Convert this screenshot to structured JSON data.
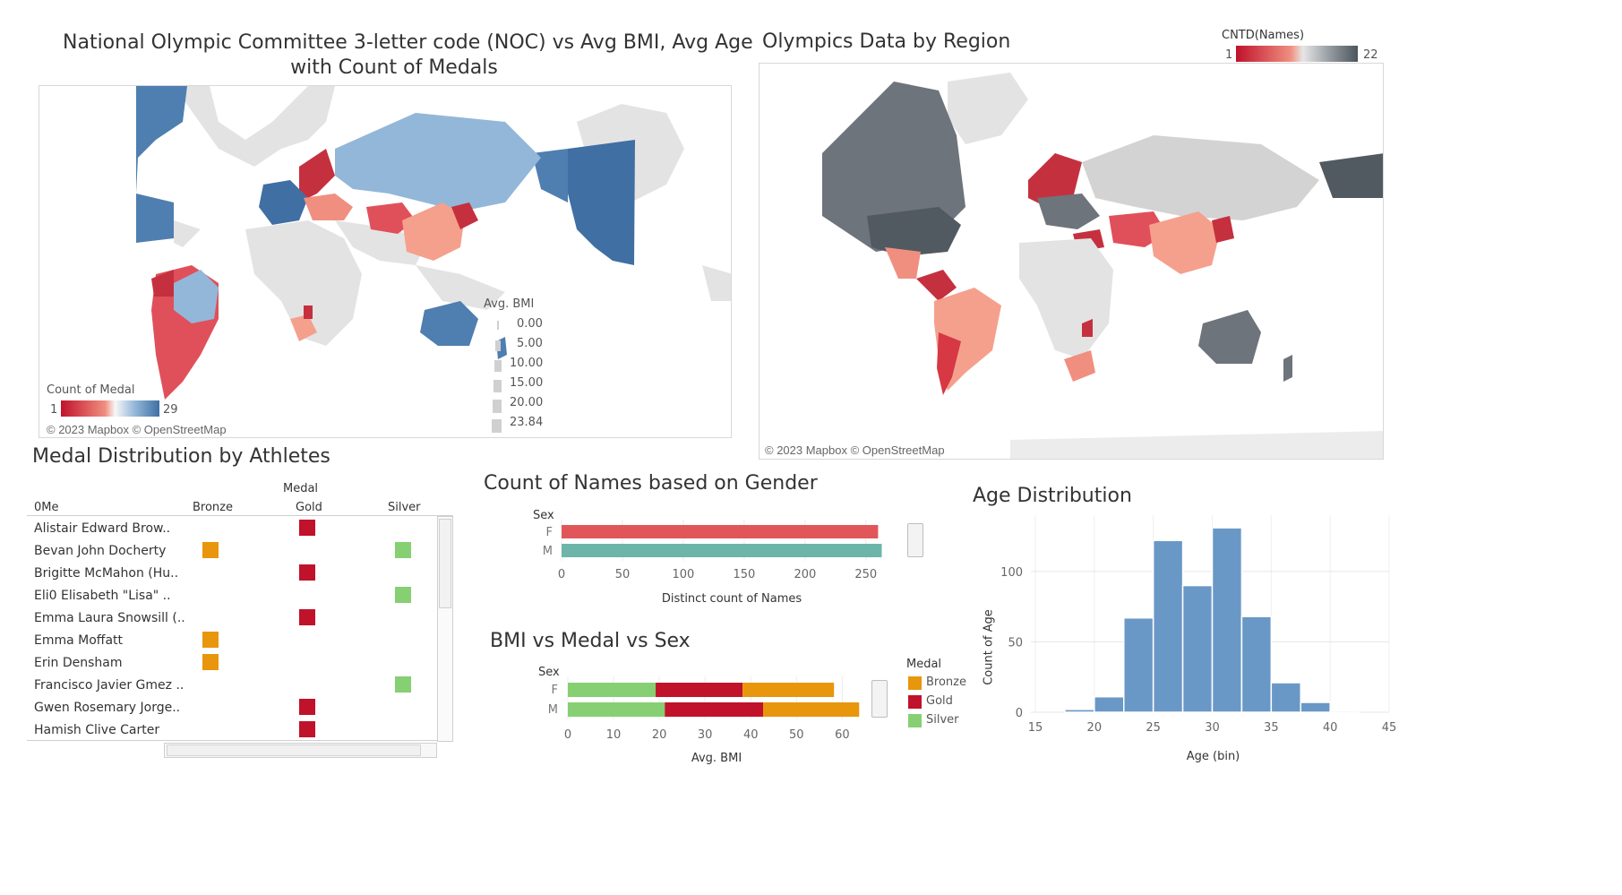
{
  "map_noc": {
    "title_line1": "National Olympic Committee 3-letter code (NOC) vs Avg BMI, Avg Age",
    "title_line2": "with Count of Medals",
    "color_legend": {
      "title": "Count of Medal",
      "min": "1",
      "max": "29"
    },
    "size_legend": {
      "title": "Avg. BMI",
      "items": [
        "0.00",
        "5.00",
        "10.00",
        "15.00",
        "20.00",
        "23.84"
      ]
    },
    "credit": "© 2023 Mapbox © OpenStreetMap"
  },
  "map_region": {
    "title": "Olympics Data by Region",
    "legend": {
      "title": "CNTD(Names)",
      "min": "1",
      "max": "22"
    },
    "credit": "© 2023 Mapbox © OpenStreetMap"
  },
  "medal_table": {
    "title": "Medal Distribution by Athletes",
    "header_group": "Medal",
    "name_header": "0Me",
    "columns": [
      "Bronze",
      "Gold",
      "Silver"
    ],
    "rows": [
      {
        "name": "Alistair Edward Brow..",
        "medals": [
          "Gold"
        ]
      },
      {
        "name": "Bevan John Docherty",
        "medals": [
          "Bronze",
          "Silver"
        ]
      },
      {
        "name": "Brigitte McMahon (Hu..",
        "medals": [
          "Gold"
        ]
      },
      {
        "name": "Eli0 Elisabeth \"Lisa\" ..",
        "medals": [
          "Silver"
        ]
      },
      {
        "name": "Emma Laura Snowsill (..",
        "medals": [
          "Gold"
        ]
      },
      {
        "name": "Emma Moffatt",
        "medals": [
          "Bronze"
        ]
      },
      {
        "name": "Erin Densham",
        "medals": [
          "Bronze"
        ]
      },
      {
        "name": "Francisco Javier Gmez ..",
        "medals": [
          "Silver"
        ]
      },
      {
        "name": "Gwen Rosemary Jorge..",
        "medals": [
          "Gold"
        ]
      },
      {
        "name": "Hamish Clive Carter",
        "medals": [
          "Gold"
        ]
      }
    ],
    "colors": {
      "Bronze": "#e8960c",
      "Gold": "#c0122b",
      "Silver": "#86cf72"
    }
  },
  "gender_chart": {
    "title": "Count of Names based on Gender",
    "axis_title": "Sex",
    "xlabel": "Distinct count of Names",
    "chart_data": {
      "type": "bar",
      "categories": [
        "F",
        "M"
      ],
      "values": [
        260,
        263
      ],
      "colors": [
        "#e15759",
        "#6cb5a8"
      ],
      "xlim": [
        0,
        270
      ],
      "xticks": [
        0,
        50,
        100,
        150,
        200,
        250
      ]
    }
  },
  "bmi_chart": {
    "title": "BMI vs Medal vs Sex",
    "axis_title": "Sex",
    "xlabel": "Avg. BMI",
    "legend_title": "Medal",
    "chart_data": {
      "type": "bar",
      "stacked": true,
      "categories": [
        "F",
        "M"
      ],
      "series": [
        {
          "name": "Silver",
          "values": [
            19.2,
            21.2
          ],
          "color": "#86cf72"
        },
        {
          "name": "Gold",
          "values": [
            19.0,
            21.5
          ],
          "color": "#c0122b"
        },
        {
          "name": "Bronze",
          "values": [
            20.0,
            21.0
          ],
          "color": "#e8960c"
        }
      ],
      "legend_order": [
        "Bronze",
        "Gold",
        "Silver"
      ],
      "xlim": [
        0,
        66
      ],
      "xticks": [
        0,
        10,
        20,
        30,
        40,
        50,
        60
      ]
    }
  },
  "age_chart": {
    "title": "Age Distribution",
    "xlabel": "Age (bin)",
    "ylabel": "Count of Age",
    "chart_data": {
      "type": "bar",
      "bins": [
        [
          17.5,
          20
        ],
        [
          20,
          22.5
        ],
        [
          22.5,
          25
        ],
        [
          25,
          27.5
        ],
        [
          27.5,
          30
        ],
        [
          30,
          32.5
        ],
        [
          32.5,
          35
        ],
        [
          35,
          37.5
        ],
        [
          37.5,
          40
        ],
        [
          40,
          42.5
        ]
      ],
      "values": [
        2,
        11,
        67,
        122,
        90,
        131,
        68,
        21,
        7,
        1
      ],
      "color": "#6a98c6",
      "xlim": [
        15,
        45
      ],
      "ylim": [
        0,
        140
      ],
      "xticks": [
        15,
        20,
        25,
        30,
        35,
        40,
        45
      ],
      "yticks": [
        0,
        50,
        100
      ]
    }
  }
}
